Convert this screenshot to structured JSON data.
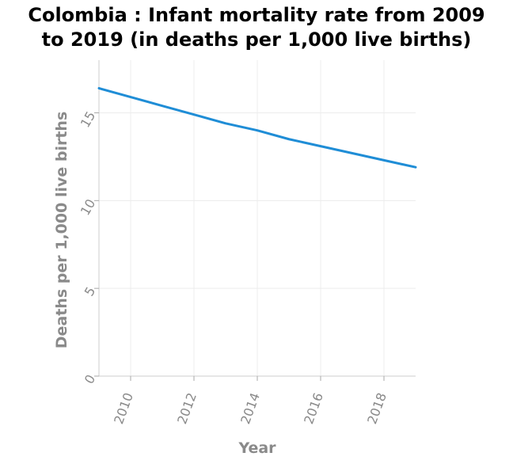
{
  "chart_data": {
    "type": "line",
    "title": "Colombia : Infant mortality rate from 2009 to 2019 (in deaths per 1,000 live births)",
    "xlabel": "Year",
    "ylabel": "Deaths per 1,000 live births",
    "xlim": [
      2009,
      2019
    ],
    "ylim": [
      0,
      18
    ],
    "x_ticks": [
      2010,
      2012,
      2014,
      2016,
      2018
    ],
    "y_ticks": [
      0,
      5,
      10,
      15
    ],
    "grid": true,
    "legend": "none",
    "series": [
      {
        "color": "#1f8dd6",
        "x": [
          2009,
          2010,
          2011,
          2012,
          2013,
          2014,
          2015,
          2016,
          2017,
          2018,
          2019
        ],
        "y": [
          16.4,
          15.9,
          15.4,
          14.9,
          14.4,
          14.0,
          13.5,
          13.1,
          12.7,
          12.3,
          11.9
        ]
      }
    ]
  }
}
